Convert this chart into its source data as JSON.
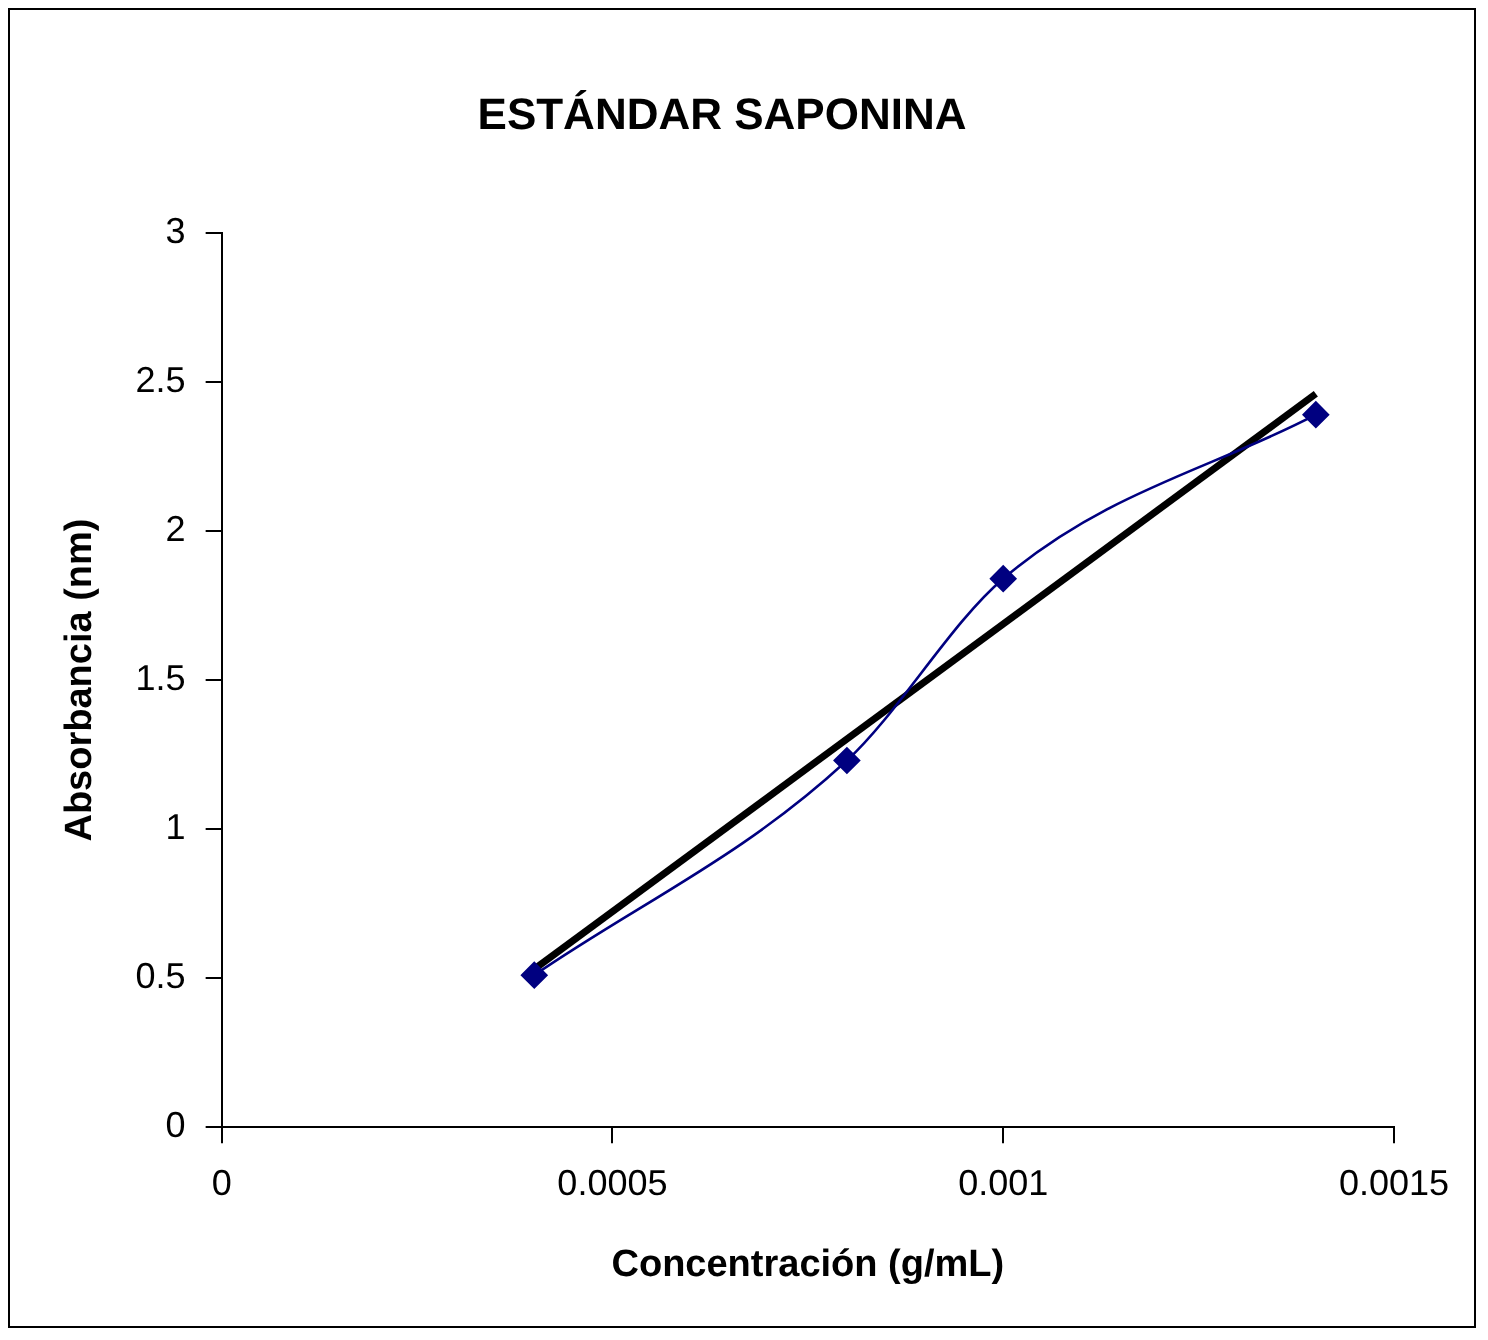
{
  "chart_data": {
    "type": "line",
    "title": "ESTÁNDAR SAPONINA",
    "xlabel": "Concentración (g/mL)",
    "ylabel": "Absorbancia (nm)",
    "x": [
      0.0004,
      0.0008,
      0.001,
      0.0014
    ],
    "series": [
      {
        "type": "line",
        "color": "#000080",
        "values": [
          0.51,
          1.23,
          1.84,
          2.39
        ],
        "marker": "diamond"
      },
      {
        "type": "line",
        "color": "#000000",
        "x": [
          0.0004,
          0.0014
        ],
        "values": [
          0.53,
          2.46
        ],
        "marker": "none"
      }
    ],
    "xlim": [
      0,
      0.0015
    ],
    "xticks": [
      0,
      0.0005,
      0.001,
      0.0015
    ],
    "ylim": [
      0,
      3
    ],
    "yticks": [
      0,
      0.5,
      1,
      1.5,
      2,
      2.5,
      3
    ],
    "grid": false,
    "legend": false
  }
}
